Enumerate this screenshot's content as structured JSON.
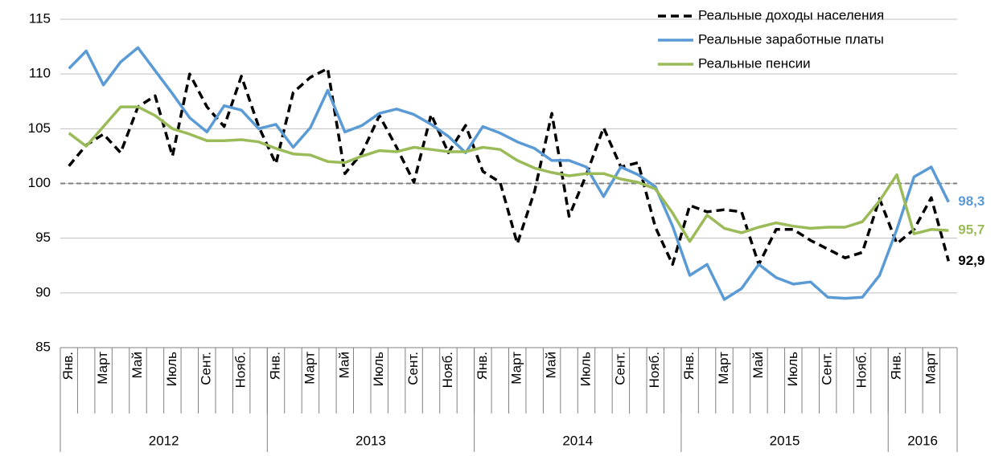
{
  "chart_data": {
    "type": "line",
    "categories": [
      "Янв.",
      null,
      "Март",
      null,
      "Май",
      null,
      "Июль",
      null,
      "Сент.",
      null,
      "Нояб.",
      null,
      "Янв.",
      null,
      "Март",
      null,
      "Май",
      null,
      "Июль",
      null,
      "Сент.",
      null,
      "Нояб.",
      null,
      "Янв.",
      null,
      "Март",
      null,
      "Май",
      null,
      "Июль",
      null,
      "Сент.",
      null,
      "Нояб.",
      null,
      "Янв.",
      null,
      "Март",
      null,
      "Май",
      null,
      "Июль",
      null,
      "Сент.",
      null,
      "Нояб.",
      null,
      "Янв.",
      null,
      "Март",
      null
    ],
    "year_labels": [
      "2012",
      "2013",
      "2014",
      "2015",
      "2016"
    ],
    "series": [
      {
        "name": "Реальные доходы населения",
        "color": "#000000",
        "dashed": true,
        "values": [
          101.6,
          103.5,
          104.5,
          102.8,
          107,
          108,
          102.5,
          110,
          107,
          105.2,
          109.8,
          105.2,
          101.8,
          108.3,
          109.7,
          110.5,
          100.9,
          102.8,
          106.2,
          103.3,
          100.1,
          106.3,
          102.8,
          105.3,
          101.1,
          100.1,
          94.5,
          99.3,
          106.4,
          97,
          100.8,
          105.1,
          101.5,
          101.9,
          96,
          92.6,
          98,
          97.4,
          97.6,
          97.4,
          92.6,
          95.8,
          95.8,
          94.8,
          94,
          93.2,
          93.7,
          98.6,
          94.5,
          95.8,
          98.7,
          92.9
        ],
        "value_labels": [
          null,
          null,
          null,
          null,
          null,
          null,
          null,
          null,
          null,
          null,
          null,
          null,
          null,
          null,
          null,
          null,
          null,
          null,
          null,
          null,
          null,
          null,
          null,
          null,
          null,
          null,
          null,
          null,
          null,
          null,
          null,
          null,
          null,
          null,
          null,
          null,
          null,
          null,
          null,
          null,
          null,
          null,
          null,
          null,
          null,
          null,
          null,
          null,
          null,
          null,
          null,
          "92,9"
        ]
      },
      {
        "name": "Реальные заработные платы",
        "color": "#5b9bd5",
        "dashed": false,
        "values": [
          110.5,
          112.1,
          109,
          111.1,
          112.4,
          110.3,
          108.2,
          106,
          104.7,
          107.1,
          106.7,
          105,
          105.4,
          103.3,
          105.1,
          108.5,
          104.7,
          105.3,
          106.4,
          106.8,
          106.3,
          105.4,
          104.3,
          102.8,
          105.2,
          104.6,
          103.8,
          103.2,
          102.1,
          102.1,
          101.5,
          98.8,
          101.5,
          100.8,
          99.7,
          96.1,
          91.6,
          92.6,
          89.4,
          90.4,
          92.6,
          91.4,
          90.8,
          91,
          89.6,
          89.5,
          89.6,
          91.6,
          95.8,
          100.6,
          101.5,
          98.3
        ],
        "value_labels": [
          null,
          null,
          null,
          null,
          null,
          null,
          null,
          null,
          null,
          null,
          null,
          null,
          null,
          null,
          null,
          null,
          null,
          null,
          null,
          null,
          null,
          null,
          null,
          null,
          null,
          null,
          null,
          null,
          null,
          null,
          null,
          null,
          null,
          null,
          null,
          null,
          null,
          null,
          null,
          null,
          null,
          null,
          null,
          null,
          null,
          null,
          null,
          null,
          null,
          null,
          null,
          "98,3"
        ]
      },
      {
        "name": "Реальные пенсии",
        "color": "#9bbb59",
        "dashed": false,
        "values": [
          104.6,
          103.4,
          105.2,
          107,
          107,
          106.2,
          105,
          104.5,
          103.9,
          103.9,
          104,
          103.8,
          103.2,
          102.7,
          102.6,
          102,
          101.9,
          102.5,
          103,
          102.9,
          103.3,
          103.1,
          102.9,
          102.9,
          103.3,
          103.1,
          102.1,
          101.4,
          101,
          100.7,
          100.9,
          100.9,
          100.4,
          100.1,
          99.5,
          97.3,
          94.7,
          97.1,
          95.9,
          95.5,
          96,
          96.4,
          96.1,
          95.9,
          96,
          96,
          96.5,
          98.4,
          100.8,
          95.4,
          95.8,
          95.7
        ],
        "value_labels": [
          null,
          null,
          null,
          null,
          null,
          null,
          null,
          null,
          null,
          null,
          null,
          null,
          null,
          null,
          null,
          null,
          null,
          null,
          null,
          null,
          null,
          null,
          null,
          null,
          null,
          null,
          null,
          null,
          null,
          null,
          null,
          null,
          null,
          null,
          null,
          null,
          null,
          null,
          null,
          null,
          null,
          null,
          null,
          null,
          null,
          null,
          null,
          null,
          null,
          null,
          null,
          "95,7"
        ]
      }
    ],
    "ylim": [
      85,
      115
    ],
    "yticks": [
      85,
      90,
      95,
      100,
      105,
      110,
      115
    ],
    "grid": true,
    "reference_line": 100,
    "legend": "top-right"
  }
}
